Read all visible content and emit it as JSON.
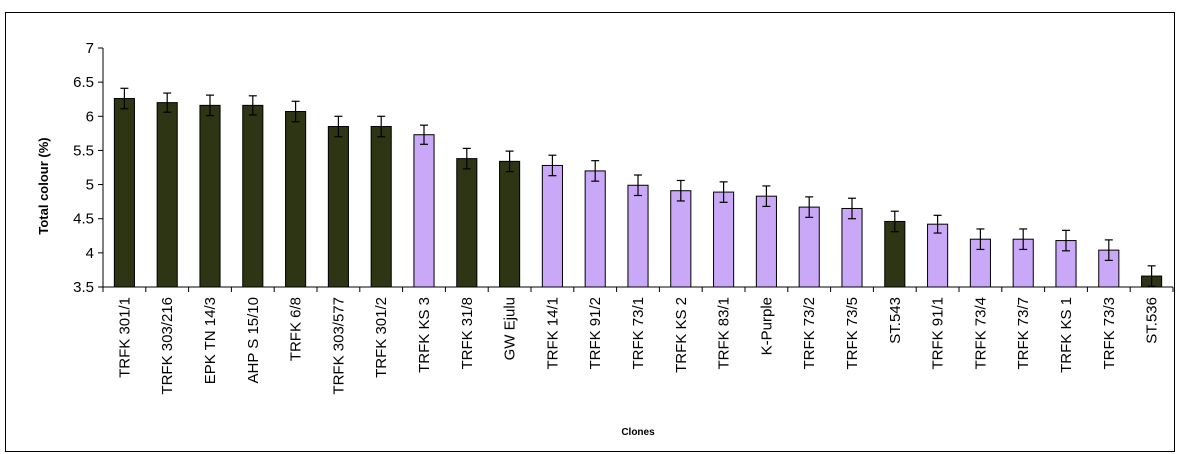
{
  "chart_data": {
    "type": "bar",
    "title": "",
    "xlabel": "Clones",
    "ylabel": "Total colour (%)",
    "ylim": [
      3.5,
      7
    ],
    "yticks": [
      "3.5",
      "4",
      "4.5",
      "5",
      "5.5",
      "6",
      "6.5",
      "7"
    ],
    "grid": false,
    "legend": "none",
    "colors": {
      "dark": "#2d3514",
      "purple": "#c8a8f7",
      "outline": "#000000"
    },
    "categories": [
      "TRFK 301/1",
      "TRFK 303/216",
      "EPK TN 14/3",
      "AHP S 15/10",
      "TRFK 6/8",
      "TRFK 303/577",
      "TRFK 301/2",
      "TRFK KS 3",
      "TRFK 31/8",
      "GW Ejulu",
      "TRFK 14/1",
      "TRFK 91/2",
      "TRFK 73/1",
      "TRFK KS 2",
      "TRFK 83/1",
      "K-Purple",
      "TRFK 73/2",
      "TRFK 73/5",
      "ST.543",
      "TRFK 91/1",
      "TRFK 73/4",
      "TRFK 73/7",
      "TRFK KS 1",
      "TRFK 73/3",
      "ST.536"
    ],
    "values": [
      6.26,
      6.2,
      6.16,
      6.16,
      6.07,
      5.85,
      5.85,
      5.73,
      5.38,
      5.34,
      5.28,
      5.2,
      4.99,
      4.91,
      4.89,
      4.83,
      4.67,
      4.65,
      4.46,
      4.42,
      4.2,
      4.2,
      4.18,
      4.04,
      3.66
    ],
    "errors": [
      0.15,
      0.14,
      0.15,
      0.14,
      0.15,
      0.15,
      0.15,
      0.14,
      0.15,
      0.15,
      0.15,
      0.15,
      0.15,
      0.15,
      0.15,
      0.15,
      0.15,
      0.15,
      0.15,
      0.13,
      0.15,
      0.15,
      0.15,
      0.15,
      0.15
    ],
    "color_groups": [
      "dark",
      "dark",
      "dark",
      "dark",
      "dark",
      "dark",
      "dark",
      "purple",
      "dark",
      "dark",
      "purple",
      "purple",
      "purple",
      "purple",
      "purple",
      "purple",
      "purple",
      "purple",
      "dark",
      "purple",
      "purple",
      "purple",
      "purple",
      "purple",
      "dark"
    ]
  }
}
